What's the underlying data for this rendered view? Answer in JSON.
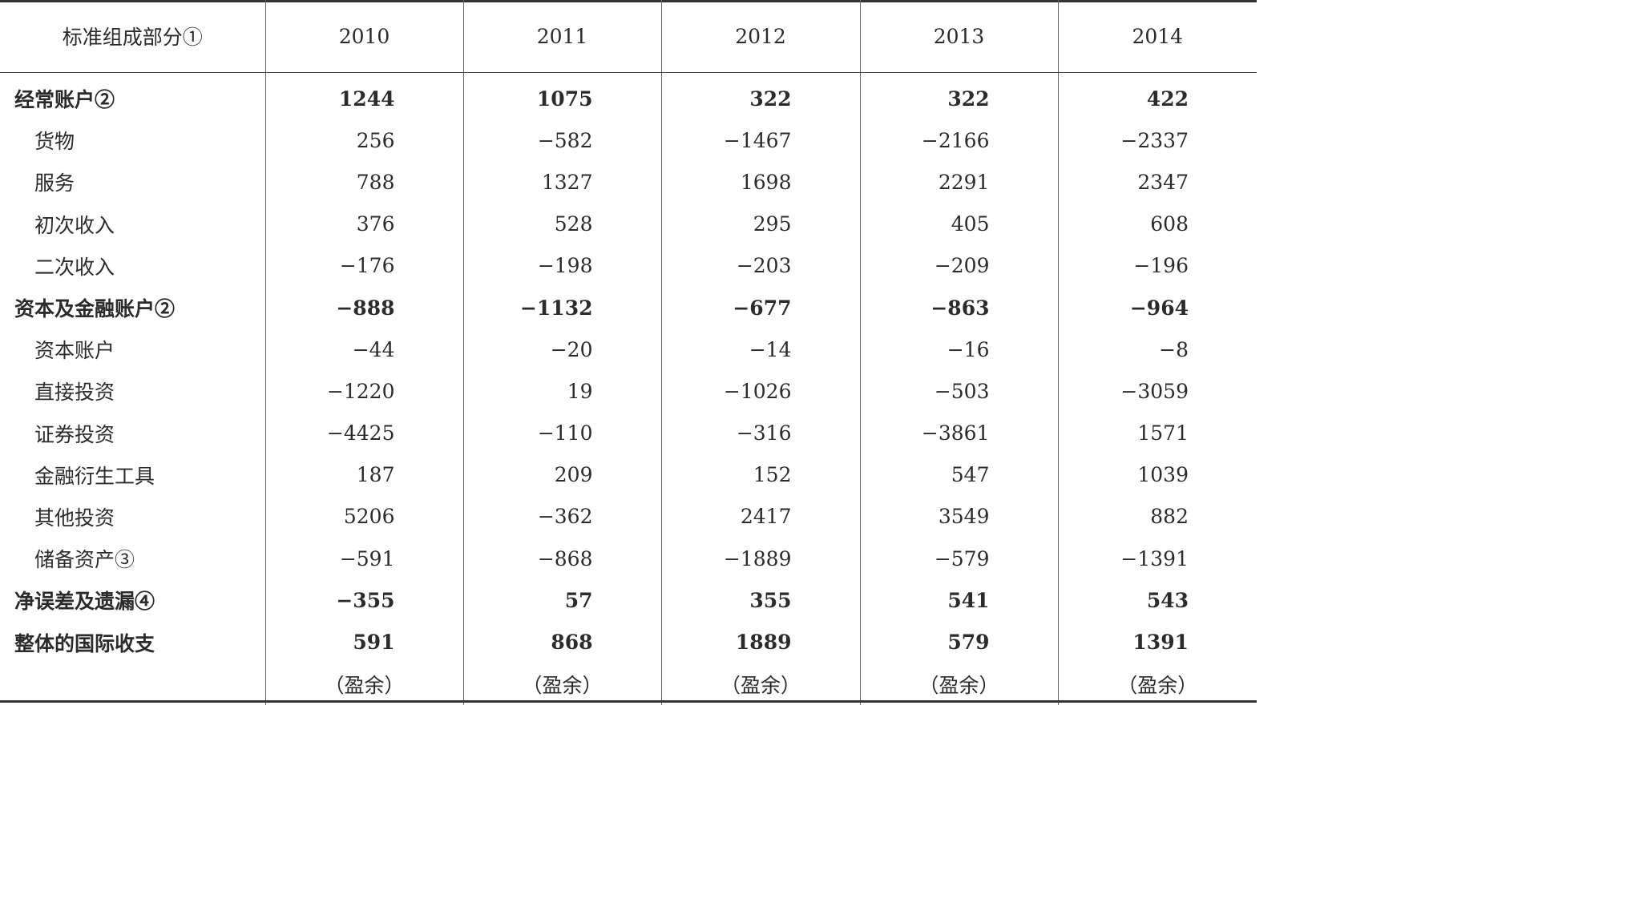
{
  "table": {
    "header": {
      "label": "标准组成部分①",
      "years": [
        "2010",
        "2011",
        "2012",
        "2013",
        "2014"
      ]
    },
    "rows": [
      {
        "label": "经常账户②",
        "values": [
          "1244",
          "1075",
          "322",
          "322",
          "422"
        ]
      },
      {
        "label": "货物",
        "values": [
          "256",
          "−582",
          "−1467",
          "−2166",
          "−2337"
        ]
      },
      {
        "label": "服务",
        "values": [
          "788",
          "1327",
          "1698",
          "2291",
          "2347"
        ]
      },
      {
        "label": "初次收入",
        "values": [
          "376",
          "528",
          "295",
          "405",
          "608"
        ]
      },
      {
        "label": "二次收入",
        "values": [
          "−176",
          "−198",
          "−203",
          "−209",
          "−196"
        ]
      },
      {
        "label": "资本及金融账户②",
        "values": [
          "−888",
          "−1132",
          "−677",
          "−863",
          "−964"
        ]
      },
      {
        "label": "资本账户",
        "values": [
          "−44",
          "−20",
          "−14",
          "−16",
          "−8"
        ]
      },
      {
        "label": "直接投资",
        "values": [
          "−1220",
          "19",
          "−1026",
          "−503",
          "−3059"
        ]
      },
      {
        "label": "证券投资",
        "values": [
          "−4425",
          "−110",
          "−316",
          "−3861",
          "1571"
        ]
      },
      {
        "label": "金融衍生工具",
        "values": [
          "187",
          "209",
          "152",
          "547",
          "1039"
        ]
      },
      {
        "label": "其他投资",
        "values": [
          "5206",
          "−362",
          "2417",
          "3549",
          "882"
        ]
      },
      {
        "label": "储备资产③",
        "values": [
          "−591",
          "−868",
          "−1889",
          "−579",
          "−1391"
        ]
      },
      {
        "label": "净误差及遗漏④",
        "values": [
          "−355",
          "57",
          "355",
          "541",
          "543"
        ]
      },
      {
        "label": "整体的国际收支",
        "values": [
          "591",
          "868",
          "1889",
          "579",
          "1391"
        ]
      }
    ],
    "notes": [
      "（盈余）",
      "（盈余）",
      "（盈余）",
      "（盈余）",
      "（盈余）"
    ]
  }
}
